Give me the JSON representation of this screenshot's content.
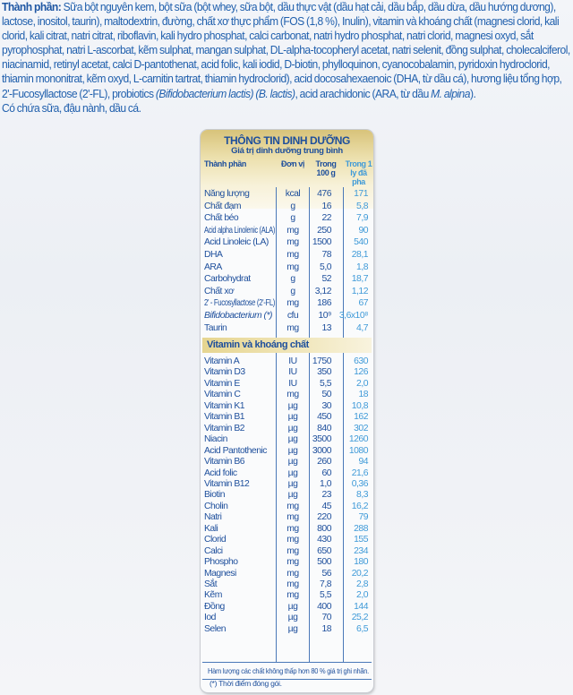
{
  "ingredients": {
    "label": "Thành phần:",
    "segments": [
      {
        "text": " Sữa bột nguyên kem, bột sữa (bột whey, sữa bột, dầu thực vật (dầu hạt cải, dầu bắp, dầu dừa, dầu hướng dương), lactose, inositol, taurin), maltodextrin, đường, chất xơ thực phẩm (FOS (1,8 %), Inulin), vitamin và khoáng chất (magnesi clorid, kali clorid, kali citrat, natri citrat, riboflavin, kali hydro phosphat, calci carbonat, natri hydro phosphat, natri clorid, magnesi oxyd, sắt pyrophosphat, natri L-ascorbat, kẽm sulphat, mangan sulphat, DL-alpha-tocopheryl acetat, natri selenit, đồng sulphat, cholecalciferol, niacinamid, retinyl acetat, calci D-pantothenat, acid folic, kali iodid, D-biotin, phylloquinon, cyanocobalamin, pyridoxin hydroclorid, thiamin mononitrat, kẽm oxyd, L-carnitin tartrat, thiamin hydroclorid), acid docosahexaenoic (DHA, từ dầu cá), hương liệu tổng hợp, 2'-Fucosyllactose (2'-FL), probiotics ",
        "italic": false
      },
      {
        "text": "(Bifidobacterium lactis) (B. lactis)",
        "italic": true
      },
      {
        "text": ", acid arachidonic (ARA, từ dầu ",
        "italic": false
      },
      {
        "text": "M. alpina",
        "italic": true
      },
      {
        "text": ").",
        "italic": false
      }
    ],
    "allergen": "Có chứa sữa, đậu nành, dầu cá."
  },
  "nutrition": {
    "title": "THÔNG TIN DINH DƯỠNG",
    "subtitle": "Giá trị dinh dưỡng trung bình",
    "columns": {
      "name": "Thành phần",
      "unit": "Đơn vị",
      "per100": "Trong 100 g",
      "perCup": "Trong 1 ly đã pha"
    },
    "main": [
      {
        "name": "Năng lượng",
        "unit": "kcal",
        "per100": "476",
        "perCup": "171"
      },
      {
        "name": "Chất đạm",
        "unit": "g",
        "per100": "16",
        "perCup": "5,8"
      },
      {
        "name": "Chất béo",
        "unit": "g",
        "per100": "22",
        "perCup": "7,9"
      },
      {
        "name": "Acid alpha Linolenic (ALA)",
        "unit": "mg",
        "per100": "250",
        "perCup": "90"
      },
      {
        "name": "Acid Linoleic (LA)",
        "unit": "mg",
        "per100": "1500",
        "perCup": "540"
      },
      {
        "name": "DHA",
        "unit": "mg",
        "per100": "78",
        "perCup": "28,1"
      },
      {
        "name": "ARA",
        "unit": "mg",
        "per100": "5,0",
        "perCup": "1,8"
      },
      {
        "name": "Carbohydrat",
        "unit": "g",
        "per100": "52",
        "perCup": "18,7"
      },
      {
        "name": "Chất xơ",
        "unit": "g",
        "per100": "3,12",
        "perCup": "1,12"
      },
      {
        "name": "2' - Fucosyllactose (2'-FL)",
        "unit": "mg",
        "per100": "186",
        "perCup": "67"
      },
      {
        "name": "Bifidobacterium (*)",
        "unit": "cfu",
        "per100": "10⁹",
        "perCup": "3,6x10⁸",
        "italic": true
      },
      {
        "name": "Taurin",
        "unit": "mg",
        "per100": "13",
        "perCup": "4,7"
      }
    ],
    "section_title": "Vitamin và khoáng chất",
    "vitamins": [
      {
        "name": "Vitamin A",
        "unit": "IU",
        "per100": "1750",
        "perCup": "630"
      },
      {
        "name": "Vitamin D3",
        "unit": "IU",
        "per100": "350",
        "perCup": "126"
      },
      {
        "name": "Vitamin E",
        "unit": "IU",
        "per100": "5,5",
        "perCup": "2,0"
      },
      {
        "name": "Vitamin C",
        "unit": "mg",
        "per100": "50",
        "perCup": "18"
      },
      {
        "name": "Vitamin K1",
        "unit": "µg",
        "per100": "30",
        "perCup": "10,8"
      },
      {
        "name": "Vitamin B1",
        "unit": "µg",
        "per100": "450",
        "perCup": "162"
      },
      {
        "name": "Vitamin B2",
        "unit": "µg",
        "per100": "840",
        "perCup": "302"
      },
      {
        "name": "Niacin",
        "unit": "µg",
        "per100": "3500",
        "perCup": "1260"
      },
      {
        "name": "Acid Pantothenic",
        "unit": "µg",
        "per100": "3000",
        "perCup": "1080"
      },
      {
        "name": "Vitamin B6",
        "unit": "µg",
        "per100": "260",
        "perCup": "94"
      },
      {
        "name": "Acid folic",
        "unit": "µg",
        "per100": "60",
        "perCup": "21,6"
      },
      {
        "name": "Vitamin B12",
        "unit": "µg",
        "per100": "1,0",
        "perCup": "0,36"
      },
      {
        "name": "Biotin",
        "unit": "µg",
        "per100": "23",
        "perCup": "8,3"
      },
      {
        "name": "Cholin",
        "unit": "mg",
        "per100": "45",
        "perCup": "16,2"
      },
      {
        "name": "Natri",
        "unit": "mg",
        "per100": "220",
        "perCup": "79"
      },
      {
        "name": "Kali",
        "unit": "mg",
        "per100": "800",
        "perCup": "288"
      },
      {
        "name": "Clorid",
        "unit": "mg",
        "per100": "430",
        "perCup": "155"
      },
      {
        "name": "Calci",
        "unit": "mg",
        "per100": "650",
        "perCup": "234"
      },
      {
        "name": "Phospho",
        "unit": "mg",
        "per100": "500",
        "perCup": "180"
      },
      {
        "name": "Magnesi",
        "unit": "mg",
        "per100": "56",
        "perCup": "20,2"
      },
      {
        "name": "Sắt",
        "unit": "mg",
        "per100": "7,8",
        "perCup": "2,8"
      },
      {
        "name": "Kẽm",
        "unit": "mg",
        "per100": "5,5",
        "perCup": "2,0"
      },
      {
        "name": "Đồng",
        "unit": "µg",
        "per100": "400",
        "perCup": "144"
      },
      {
        "name": "Iod",
        "unit": "µg",
        "per100": "70",
        "perCup": "25,2"
      },
      {
        "name": "Selen",
        "unit": "µg",
        "per100": "18",
        "perCup": "6,5"
      }
    ],
    "footnote_content": "Hàm lượng các chất không thấp hơn 80 % giá trị ghi nhãn.",
    "footnote_packing": "(*) Thời điểm đóng gói."
  },
  "colors": {
    "text_blue": "#2160ad",
    "title_blue": "#1e4f9c",
    "per_cup_blue": "#3f9ad8",
    "header_gold": "#e6d590"
  }
}
